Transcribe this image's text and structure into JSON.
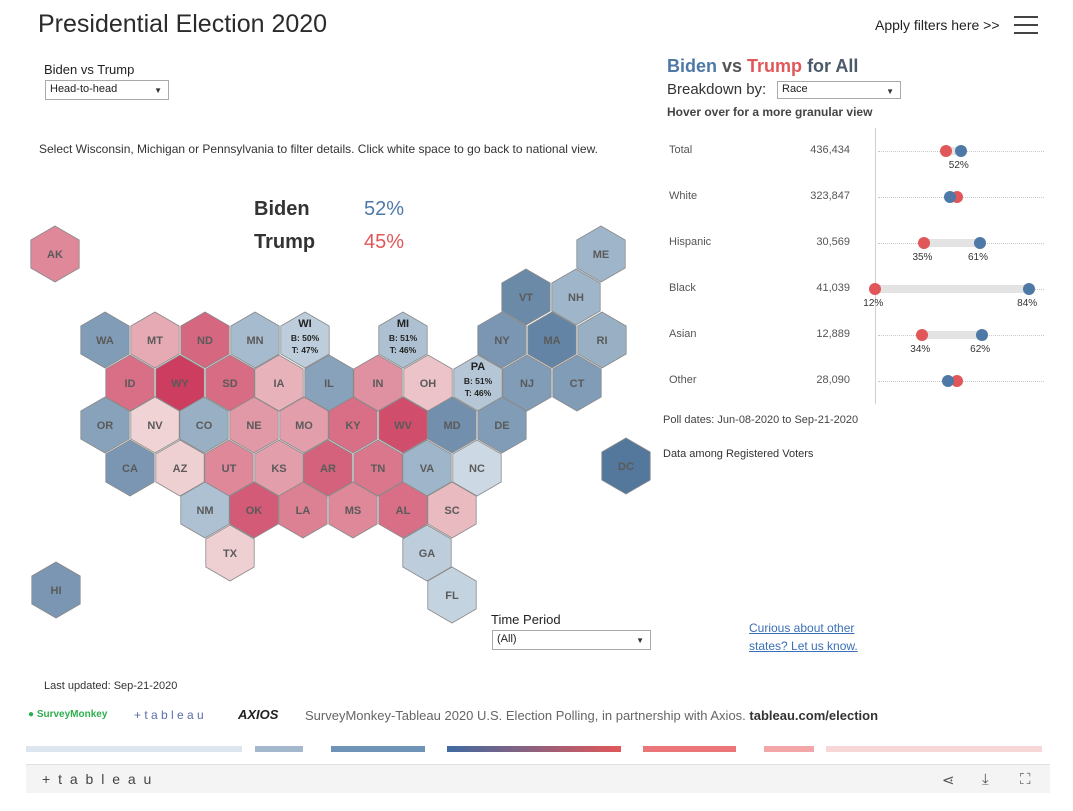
{
  "title": "Presidential Election 2020",
  "apply_filters": "Apply filters here >>",
  "menu_icon": "hamburger-menu-icon",
  "matchup": {
    "label": "Biden vs Trump",
    "selected": "Head-to-head"
  },
  "instructions": "Select Wisconsin, Michigan or Pennsylvania to filter details. Click white space to go back to national view.",
  "totals": {
    "biden_label": "Biden",
    "biden_pct": "52%",
    "trump_label": "Trump",
    "trump_pct": "45%"
  },
  "colors": {
    "biden": "#4e79a7",
    "trump": "#e15759"
  },
  "states": [
    {
      "abbr": "AK",
      "lean": 0.55
    },
    {
      "abbr": "ME",
      "lean": -0.45
    },
    {
      "abbr": "VT",
      "lean": -0.8
    },
    {
      "abbr": "NH",
      "lean": -0.45
    },
    {
      "abbr": "WA",
      "lean": -0.65
    },
    {
      "abbr": "MT",
      "lean": 0.35
    },
    {
      "abbr": "ND",
      "lean": 0.75
    },
    {
      "abbr": "MN",
      "lean": -0.4
    },
    {
      "abbr": "WI",
      "lean": -0.25,
      "b": "B: 50%",
      "t": "T: 47%"
    },
    {
      "abbr": "MI",
      "lean": -0.35,
      "b": "B: 51%",
      "t": "T: 46%"
    },
    {
      "abbr": "NY",
      "lean": -0.7
    },
    {
      "abbr": "MA",
      "lean": -0.85
    },
    {
      "abbr": "RI",
      "lean": -0.5
    },
    {
      "abbr": "ID",
      "lean": 0.7
    },
    {
      "abbr": "WY",
      "lean": 1.0
    },
    {
      "abbr": "SD",
      "lean": 0.72
    },
    {
      "abbr": "IA",
      "lean": 0.3
    },
    {
      "abbr": "IL",
      "lean": -0.6
    },
    {
      "abbr": "IN",
      "lean": 0.5
    },
    {
      "abbr": "OH",
      "lean": 0.2
    },
    {
      "abbr": "PA",
      "lean": -0.3,
      "b": "B: 51%",
      "t": "T: 46%"
    },
    {
      "abbr": "NJ",
      "lean": -0.65
    },
    {
      "abbr": "CT",
      "lean": -0.65
    },
    {
      "abbr": "OR",
      "lean": -0.6
    },
    {
      "abbr": "NV",
      "lean": 0.1
    },
    {
      "abbr": "CO",
      "lean": -0.5
    },
    {
      "abbr": "NE",
      "lean": 0.45
    },
    {
      "abbr": "MO",
      "lean": 0.42
    },
    {
      "abbr": "KY",
      "lean": 0.7
    },
    {
      "abbr": "WV",
      "lean": 0.9
    },
    {
      "abbr": "MD",
      "lean": -0.75
    },
    {
      "abbr": "DE",
      "lean": -0.65
    },
    {
      "abbr": "DC",
      "lean": -0.95
    },
    {
      "abbr": "CA",
      "lean": -0.7
    },
    {
      "abbr": "AZ",
      "lean": 0.12
    },
    {
      "abbr": "UT",
      "lean": 0.55
    },
    {
      "abbr": "KS",
      "lean": 0.42
    },
    {
      "abbr": "AR",
      "lean": 0.78
    },
    {
      "abbr": "TN",
      "lean": 0.65
    },
    {
      "abbr": "VA",
      "lean": -0.45
    },
    {
      "abbr": "NC",
      "lean": -0.15
    },
    {
      "abbr": "NM",
      "lean": -0.35
    },
    {
      "abbr": "OK",
      "lean": 0.82
    },
    {
      "abbr": "LA",
      "lean": 0.6
    },
    {
      "abbr": "MS",
      "lean": 0.55
    },
    {
      "abbr": "AL",
      "lean": 0.7
    },
    {
      "abbr": "SC",
      "lean": 0.25
    },
    {
      "abbr": "TX",
      "lean": 0.12
    },
    {
      "abbr": "GA",
      "lean": -0.25
    },
    {
      "abbr": "HI",
      "lean": -0.7
    },
    {
      "abbr": "FL",
      "lean": -0.2
    }
  ],
  "time_period": {
    "label": "Time Period",
    "selected": "(All)"
  },
  "right": {
    "title_biden": "Biden",
    "title_vs": " vs ",
    "title_trump": "Trump",
    "title_suffix": " for All",
    "breakdown_label": "Breakdown by:",
    "breakdown_selected": "Race",
    "hover_hint": "Hover over for a more granular view",
    "rows": [
      {
        "label": "Total",
        "n": "436,434",
        "biden": 52,
        "trump": 45,
        "biden_label": "52%",
        "trump_label": ""
      },
      {
        "label": "White",
        "n": "323,847",
        "biden": 47,
        "trump": 50,
        "biden_label": "",
        "trump_label": ""
      },
      {
        "label": "Hispanic",
        "n": "30,569",
        "biden": 61,
        "trump": 35,
        "biden_label": "61%",
        "trump_label": "35%"
      },
      {
        "label": "Black",
        "n": "41,039",
        "biden": 84,
        "trump": 12,
        "biden_label": "84%",
        "trump_label": "12%"
      },
      {
        "label": "Asian",
        "n": "12,889",
        "biden": 62,
        "trump": 34,
        "biden_label": "62%",
        "trump_label": "34%"
      },
      {
        "label": "Other",
        "n": "28,090",
        "biden": 46,
        "trump": 50,
        "biden_label": "",
        "trump_label": ""
      }
    ],
    "poll_dates": "Poll dates: Jun-08-2020 to Sep-21-2020",
    "registered": "Data among Registered Voters",
    "curious_line1": "Curious about other",
    "curious_line2": "states? Let us know."
  },
  "footer": {
    "last_updated": "Last updated: Sep-21-2020",
    "logo_surveymonkey": "SurveyMonkey",
    "logo_tableau": "+ t a b l e a u",
    "logo_axios": "AXIOS",
    "credit_text": "SurveyMonkey-Tableau 2020 U.S. Election Polling, in partnership with Axios.",
    "credit_link": "tableau.com/election",
    "brand": "+ t a b l e a u"
  }
}
